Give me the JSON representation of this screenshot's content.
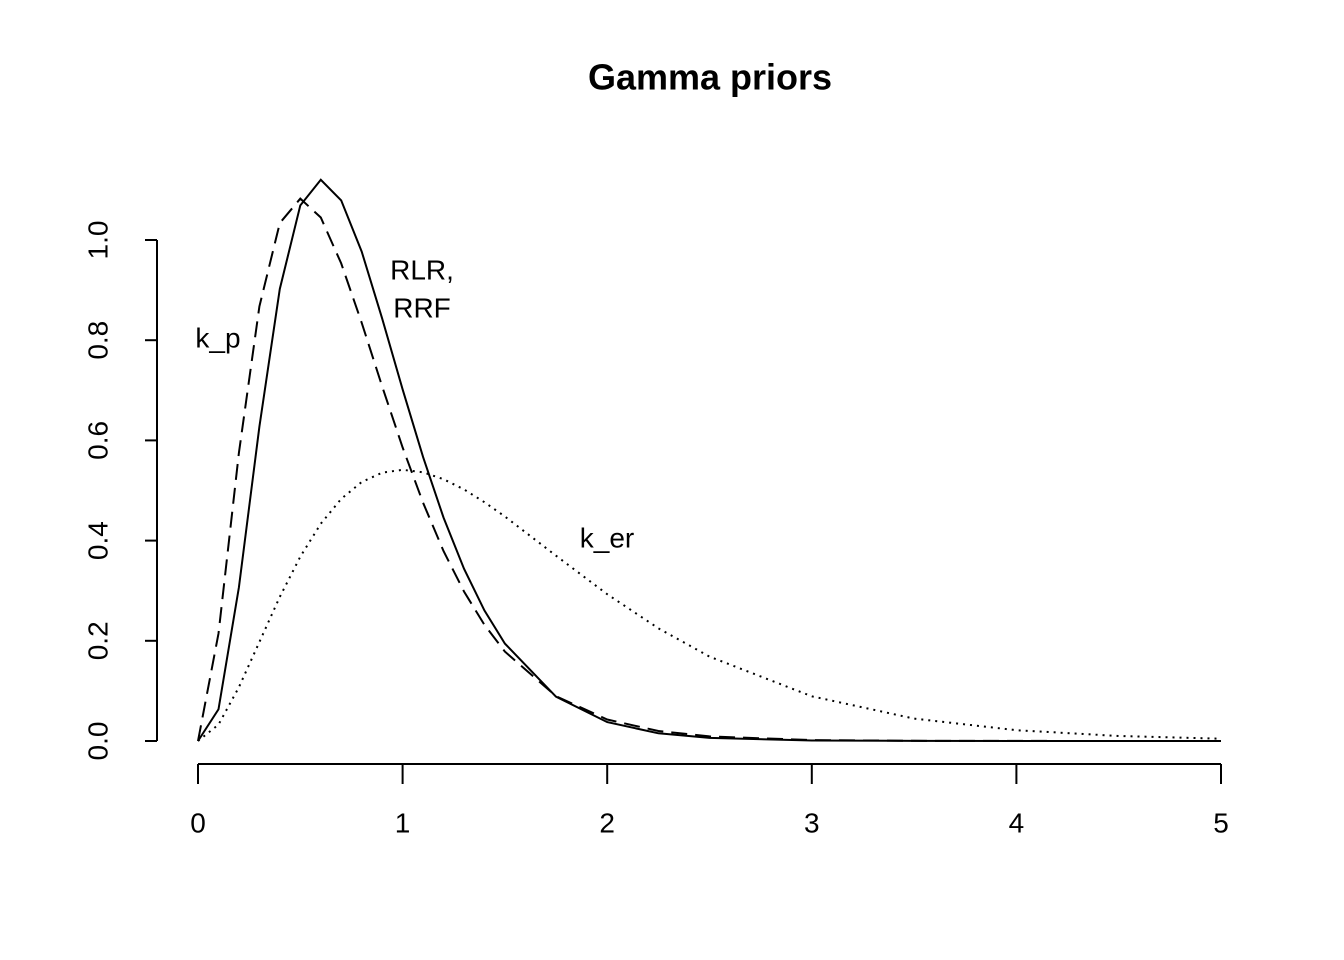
{
  "chart_data": {
    "type": "line",
    "title": "Gamma priors",
    "x": [
      0,
      0.1,
      0.2,
      0.3,
      0.4,
      0.5,
      0.6,
      0.7,
      0.8,
      0.9,
      1,
      1.1,
      1.2,
      1.3,
      1.4,
      1.5,
      1.75,
      2,
      2.25,
      2.5,
      3,
      3.5,
      4,
      4.5,
      5
    ],
    "series": [
      {
        "color": "#000000",
        "line_style": "solid",
        "values": [
          0,
          0.0632,
          0.3066,
          0.6275,
          0.9022,
          1.069,
          1.1201,
          1.079,
          0.9769,
          0.8437,
          0.7019,
          0.5666,
          0.4462,
          0.344,
          0.2607,
          0.1944,
          0.0885,
          0.0378,
          0.0154,
          0.0061,
          0.0009,
          0.0001,
          0,
          0,
          0
        ]
      },
      {
        "color": "#000000",
        "line_style": "dashed",
        "values": [
          0,
          0.2145,
          0.5751,
          0.8675,
          1.0337,
          1.0827,
          1.0449,
          0.9533,
          0.8348,
          0.7081,
          0.5861,
          0.4755,
          0.3792,
          0.2984,
          0.2319,
          0.1785,
          0.0894,
          0.0429,
          0.02,
          0.0091,
          0.0018,
          0.0003,
          0.0001,
          0,
          0
        ]
      },
      {
        "color": "#000000",
        "line_style": "dotted",
        "values": [
          0,
          0.0327,
          0.1073,
          0.1976,
          0.2876,
          0.3679,
          0.4337,
          0.4833,
          0.5169,
          0.5356,
          0.5413,
          0.5363,
          0.5225,
          0.5021,
          0.4767,
          0.4481,
          0.3699,
          0.2931,
          0.225,
          0.1684,
          0.0892,
          0.0447,
          0.0215,
          0.01,
          0.0045
        ]
      }
    ],
    "annotations": [
      "k_p",
      "RLR,",
      "RRF",
      "k_er"
    ],
    "xlim": [
      0,
      5
    ],
    "ylim": [
      0,
      1.0
    ],
    "xticks": [
      0,
      1,
      2,
      3,
      4,
      5
    ],
    "yticks": [
      {
        "value": 0,
        "label": "0.0"
      },
      {
        "value": 0.2,
        "label": "0.2"
      },
      {
        "value": 0.4,
        "label": "0.4"
      },
      {
        "value": 0.6,
        "label": "0.6"
      },
      {
        "value": 0.8,
        "label": "0.8"
      },
      {
        "value": 1.0,
        "label": "1.0"
      }
    ]
  }
}
